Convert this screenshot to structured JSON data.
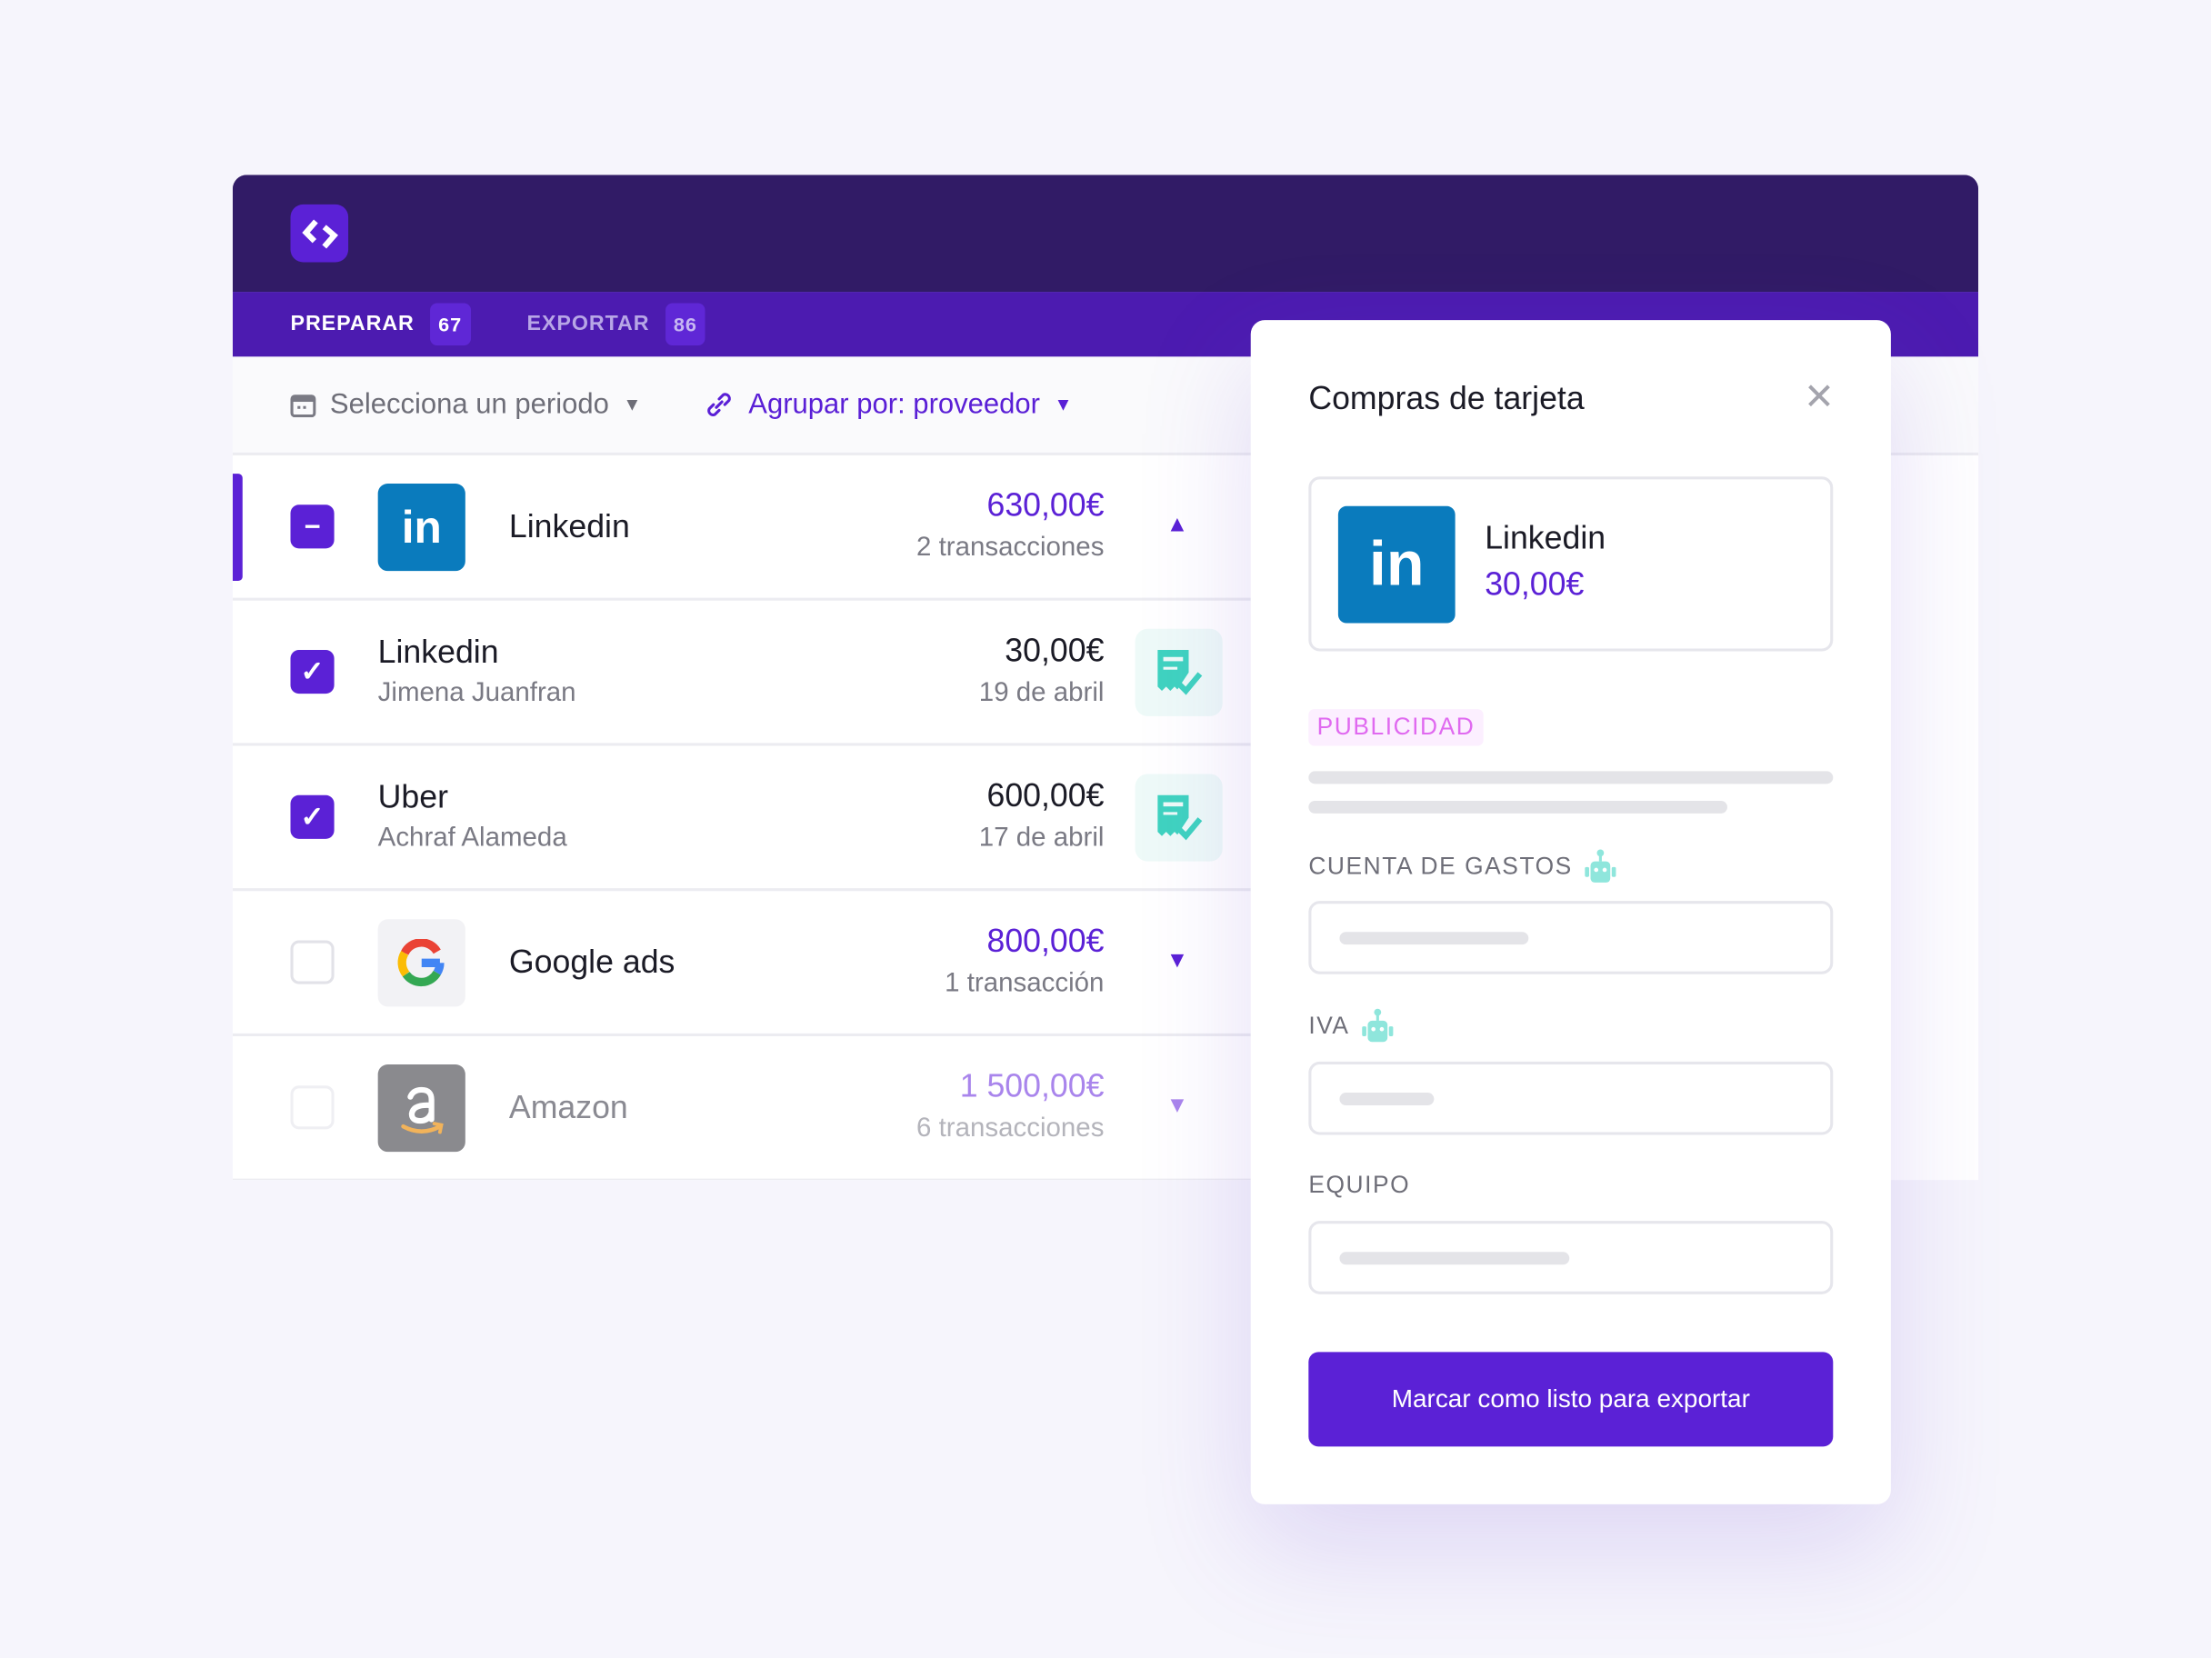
{
  "tabs": [
    {
      "label": "PREPARAR",
      "count": "67"
    },
    {
      "label": "EXPORTAR",
      "count": "86"
    }
  ],
  "filters": {
    "period": "Selecciona un periodo",
    "group": "Agrupar por: proveedor"
  },
  "rows": [
    {
      "name": "Linkedin",
      "amount": "630,00€",
      "meta": "2 transacciones",
      "checkbox": "indeterminate",
      "expanded": true
    },
    {
      "name": "Linkedin",
      "person": "Jimena Juanfran",
      "amount": "30,00€",
      "meta": "19 de abril",
      "checkbox": "checked"
    },
    {
      "name": "Uber",
      "person": "Achraf Alameda",
      "amount": "600,00€",
      "meta": "17 de abril",
      "checkbox": "checked"
    },
    {
      "name": "Google ads",
      "amount": "800,00€",
      "meta": "1 transacción",
      "checkbox": "unchecked"
    },
    {
      "name": "Amazon",
      "amount": "1 500,00€",
      "meta": "6 transacciones",
      "checkbox": "unchecked"
    }
  ],
  "panel": {
    "title": "Compras de tarjeta",
    "vendor": "Linkedin",
    "amount": "30,00€",
    "tag": "PUBLICIDAD",
    "fields": [
      "CUENTA DE GASTOS",
      "IVA",
      "EQUIPO"
    ],
    "button": "Marcar como listo para exportar"
  },
  "colors": {
    "brand": "#5b21d6",
    "header": "#311b66",
    "tabs": "#4c1bb0",
    "linkedin": "#0a7bbd",
    "tag": "#e06af0",
    "receipt": "#3fd3c0"
  }
}
